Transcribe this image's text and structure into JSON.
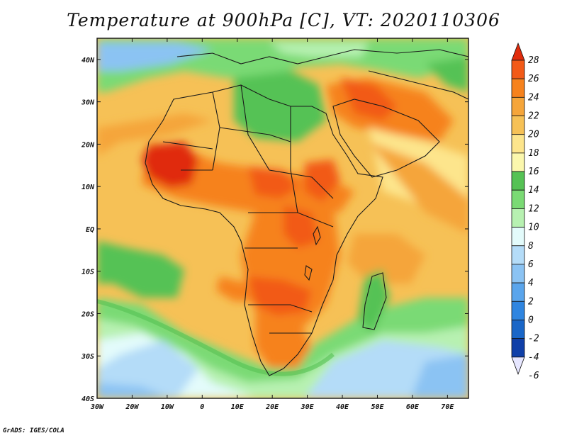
{
  "title": "Temperature at 900hPa [C], VT: 2020110306",
  "credit": "GrADS: IGES/COLA",
  "map": {
    "lon_range": [
      -30,
      76
    ],
    "lat_range": [
      -40,
      45
    ],
    "x_ticks": [
      "30W",
      "20W",
      "10W",
      "0",
      "10E",
      "20E",
      "30E",
      "40E",
      "50E",
      "60E",
      "70E"
    ],
    "x_tick_values": [
      -30,
      -20,
      -10,
      0,
      10,
      20,
      30,
      40,
      50,
      60,
      70
    ],
    "y_ticks": [
      "40S",
      "30S",
      "20S",
      "10S",
      "EQ",
      "10N",
      "20N",
      "30N",
      "40N"
    ],
    "y_tick_values": [
      -40,
      -30,
      -20,
      -10,
      0,
      10,
      20,
      30,
      40
    ]
  },
  "colorbar": {
    "labels": [
      "28",
      "26",
      "24",
      "22",
      "20",
      "18",
      "16",
      "14",
      "12",
      "10",
      "8",
      "6",
      "4",
      "2",
      "0",
      "-2",
      "-4",
      "-6"
    ],
    "colors": [
      "#e02c0c",
      "#f25a17",
      "#f6821d",
      "#f5a53a",
      "#f6c156",
      "#fde58c",
      "#fbf7ad",
      "#55c254",
      "#7ada74",
      "#b7f1b1",
      "#e3fbfb",
      "#b4dcf8",
      "#8bc3f3",
      "#5aa5ec",
      "#2f85e0",
      "#1966c8",
      "#0f3fa8",
      "#0b1a6d"
    ]
  }
}
